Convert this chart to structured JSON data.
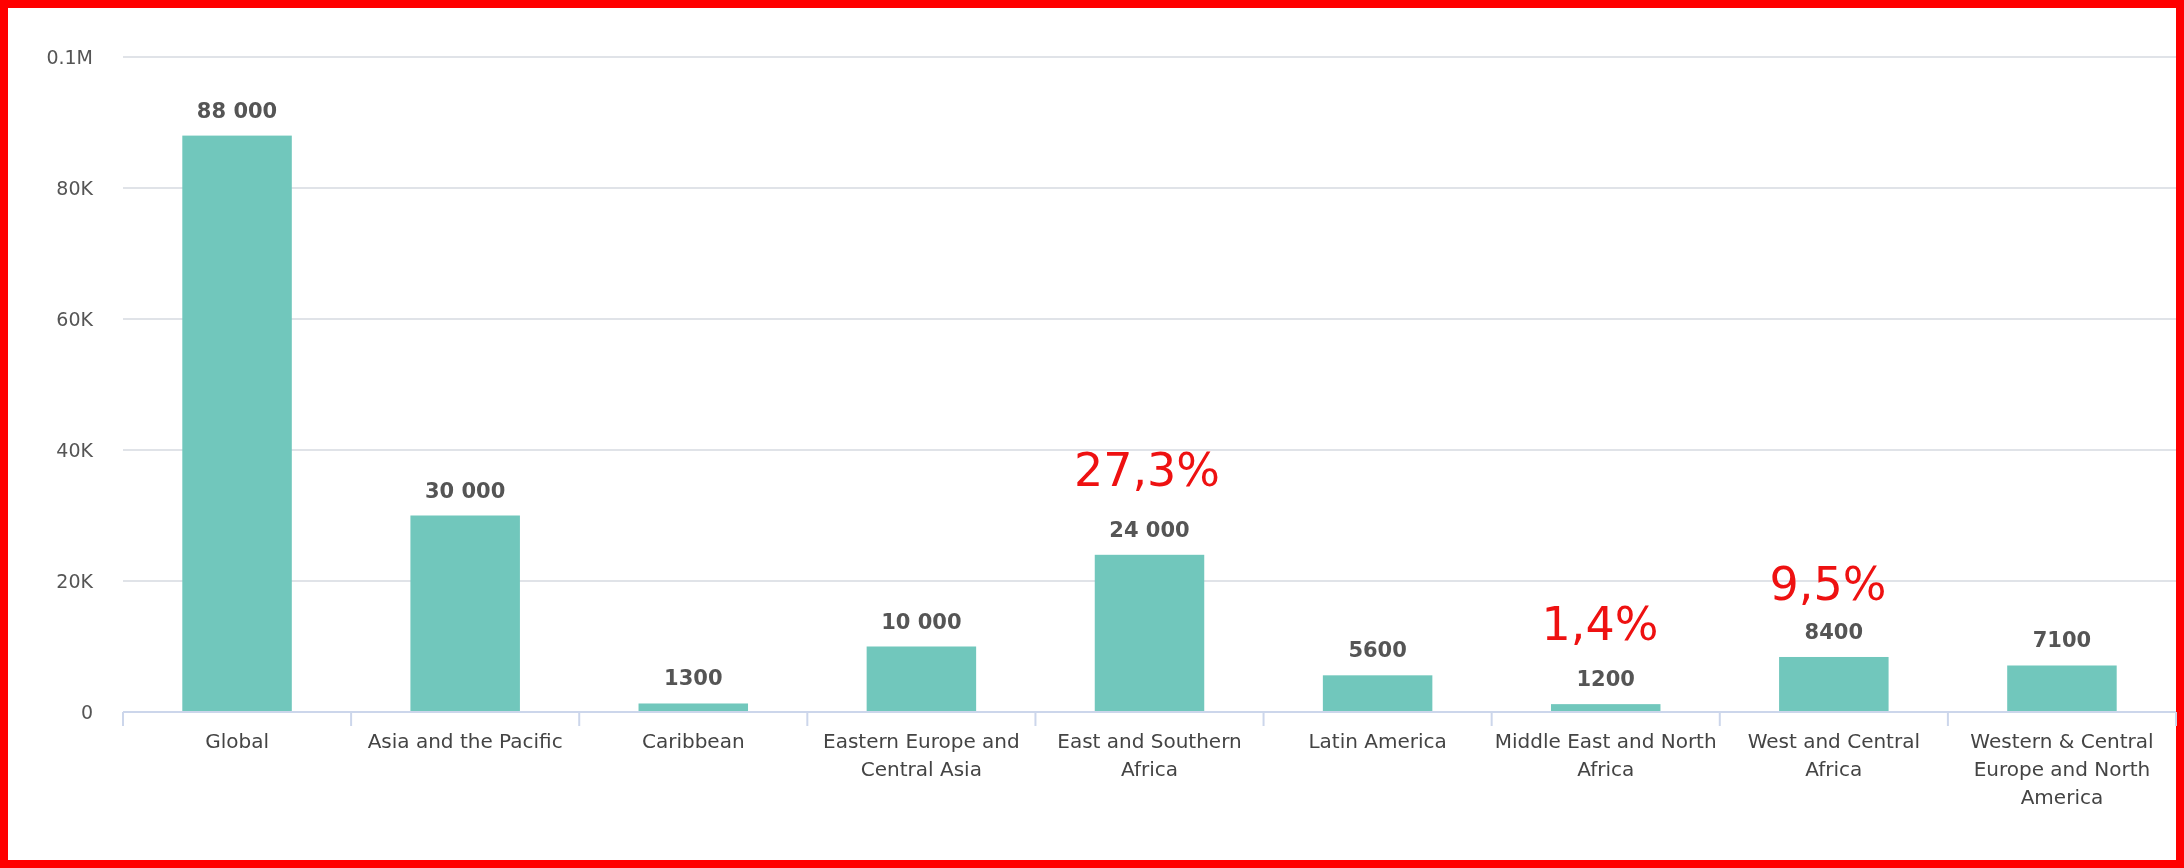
{
  "chart_data": {
    "type": "bar",
    "categories": [
      "Global",
      "Asia and the Pacific",
      "Caribbean",
      "Eastern Europe and Central Asia",
      "East and Southern Africa",
      "Latin America",
      "Middle East and North Africa",
      "West and Central Africa",
      "Western & Central Europe and North America"
    ],
    "values": [
      88000,
      30000,
      1300,
      10000,
      24000,
      5600,
      1200,
      8400,
      7100
    ],
    "value_labels": [
      "88 000",
      "30 000",
      "1300",
      "10 000",
      "24 000",
      "5600",
      "1200",
      "8400",
      "7100"
    ],
    "color": "#71c7bc",
    "ylim": [
      0,
      100000
    ],
    "yticks": [
      0,
      {
        "value": 20000,
        "label": "20K"
      },
      {
        "value": 40000,
        "label": "40K"
      },
      {
        "value": 60000,
        "label": "60K"
      },
      {
        "value": 80000,
        "label": "80K"
      },
      {
        "value": 100000,
        "label": "0.1M"
      }
    ],
    "grid": "y",
    "annotations": [
      "27,3%",
      "1,4%",
      "9,5%"
    ]
  }
}
